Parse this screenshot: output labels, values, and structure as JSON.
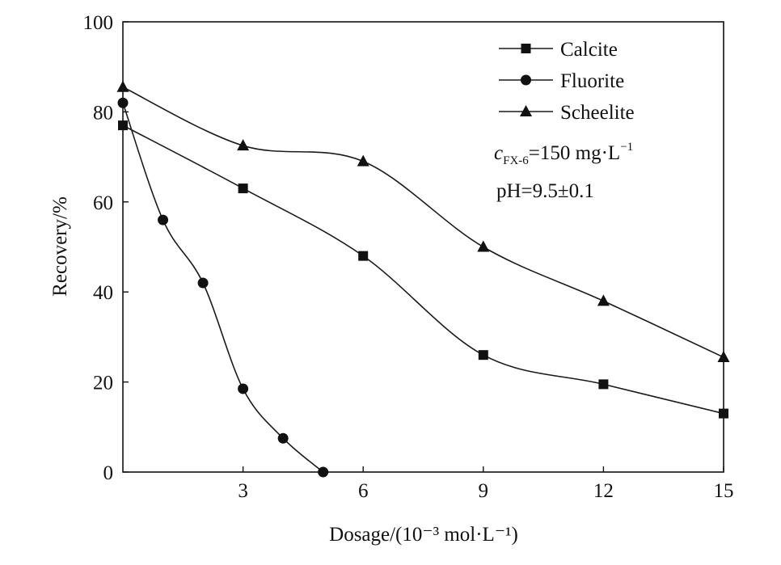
{
  "chart_data": {
    "type": "line",
    "xlabel": "Dosage/(10⁻³ mol·L⁻¹)",
    "ylabel": "Recovery/%",
    "xlim": [
      0,
      15
    ],
    "ylim": [
      0,
      100
    ],
    "x_ticks": [
      3,
      6,
      9,
      12,
      15
    ],
    "x_tick_labels": [
      "3",
      "6",
      "9",
      "12",
      "15"
    ],
    "y_ticks": [
      0,
      20,
      40,
      60,
      80,
      100
    ],
    "y_tick_labels": [
      "0",
      "20",
      "40",
      "60",
      "80",
      "100"
    ],
    "grid": false,
    "legend_position": "top-right",
    "series": [
      {
        "name": "Calcite",
        "marker": "square",
        "x": [
          0,
          3,
          6,
          9,
          12,
          15
        ],
        "y": [
          77,
          63,
          48,
          26,
          19.5,
          13
        ]
      },
      {
        "name": "Fluorite",
        "marker": "circle",
        "x": [
          0,
          1,
          2,
          3,
          4,
          5
        ],
        "y": [
          82,
          56,
          42,
          18.5,
          7.5,
          0
        ]
      },
      {
        "name": "Scheelite",
        "marker": "triangle",
        "x": [
          0,
          3,
          6,
          9,
          12,
          15
        ],
        "y": [
          85.5,
          72.5,
          69,
          50,
          38,
          25.5
        ]
      }
    ],
    "annotations": {
      "concentration": {
        "symbol": "c",
        "subscript": "FX-6",
        "value": "=150 mg·L",
        "superscript": "−1"
      },
      "ph": "pH=9.5±0.1"
    },
    "colors": {
      "line": "#1a1a1a",
      "marker": "#111111",
      "background": "#ffffff"
    }
  }
}
